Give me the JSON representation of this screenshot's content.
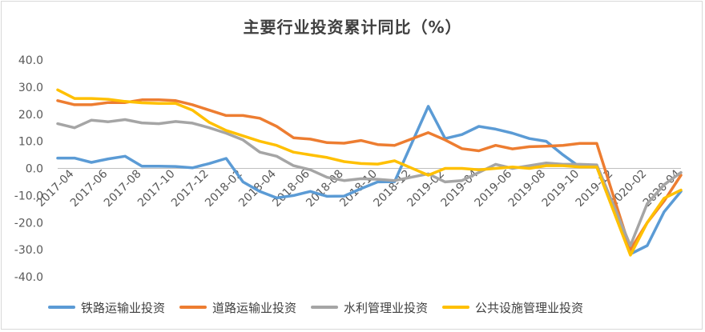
{
  "chart_data": {
    "type": "line",
    "title": "主要行业投资累计同比（%）",
    "xlabel": "",
    "ylabel": "",
    "ylim": [
      -40,
      40
    ],
    "y_ticks": [
      "40.0",
      "30.0",
      "20.0",
      "10.0",
      "0.0",
      "-10.0",
      "-20.0",
      "-30.0",
      "-40.0"
    ],
    "x": [
      "2017-04",
      "2017-05",
      "2017-06",
      "2017-07",
      "2017-08",
      "2017-09",
      "2017-10",
      "2017-11",
      "2017-12",
      "2018-01",
      "2018-02",
      "2018-03",
      "2018-04",
      "2018-05",
      "2018-06",
      "2018-07",
      "2018-08",
      "2018-09",
      "2018-10",
      "2018-11",
      "2018-12",
      "2019-01",
      "2019-02",
      "2019-03",
      "2019-04",
      "2019-05",
      "2019-06",
      "2019-07",
      "2019-08",
      "2019-09",
      "2019-10",
      "2019-11",
      "2019-12",
      "2020-01",
      "2020-02",
      "2020-03",
      "2020-04",
      "2020-05"
    ],
    "x_tick_labels": [
      "2017-04",
      "2017-06",
      "2017-08",
      "2017-10",
      "2017-12",
      "2018-02",
      "2018-04",
      "2018-06",
      "2018-08",
      "2018-10",
      "2018-12",
      "2019-02",
      "2019-04",
      "2019-06",
      "2019-08",
      "2019-10",
      "2019-12",
      "2020-02",
      "2020-04"
    ],
    "grid": false,
    "legend_position": "bottom",
    "series": [
      {
        "name": "铁路运输业投资",
        "color": "#5b9bd5",
        "values": [
          3.8,
          3.8,
          2.2,
          3.5,
          4.5,
          0.8,
          0.8,
          0.7,
          0.2,
          1.8,
          3.7,
          -5,
          -8.5,
          -10.9,
          -10,
          -8.5,
          -10.3,
          -10.2,
          -7.5,
          -5,
          -4.9,
          null,
          22.9,
          11,
          12.5,
          15.5,
          14.5,
          13,
          11,
          10,
          5,
          0.5,
          0.5,
          null,
          -31.6,
          -28.5,
          -16,
          -8.5
        ]
      },
      {
        "name": "道路运输业投资",
        "color": "#ed7d31",
        "values": [
          25,
          23.5,
          23.5,
          24.3,
          24.3,
          25.3,
          25.3,
          25,
          23.5,
          21.5,
          19.5,
          19.5,
          18.5,
          15.5,
          11.3,
          10.8,
          9.5,
          9.3,
          10.3,
          8.8,
          8.5,
          null,
          13.2,
          10.5,
          7.3,
          6.5,
          8.5,
          7.2,
          8,
          8.2,
          8.5,
          9.2,
          9.2,
          null,
          -30,
          -20,
          -12,
          -2.5
        ]
      },
      {
        "name": "水利管理业投资",
        "color": "#a5a5a5",
        "values": [
          16.5,
          15,
          17.8,
          17.2,
          18,
          16.8,
          16.5,
          17.3,
          16.7,
          15,
          13,
          10.5,
          6,
          4.5,
          1,
          -0.5,
          -3.3,
          -4.5,
          -3.8,
          -4,
          -4.5,
          null,
          -2,
          -5,
          -4.5,
          -1.5,
          1.5,
          0,
          1,
          2,
          1.5,
          1.5,
          1.3,
          null,
          -28.5,
          -13,
          -6,
          -1.5
        ]
      },
      {
        "name": "公共设施管理业投资",
        "color": "#ffc000",
        "values": [
          29,
          25.8,
          25.8,
          25.5,
          24.7,
          24.2,
          24,
          24,
          21.5,
          17,
          14,
          12,
          10,
          8.5,
          6,
          5,
          4,
          2.5,
          1.8,
          1.6,
          2.8,
          null,
          -2.5,
          0,
          0,
          -0.5,
          0,
          0.5,
          0,
          1,
          1,
          0.5,
          0.5,
          null,
          -32,
          -20,
          -11,
          -8
        ]
      }
    ]
  }
}
